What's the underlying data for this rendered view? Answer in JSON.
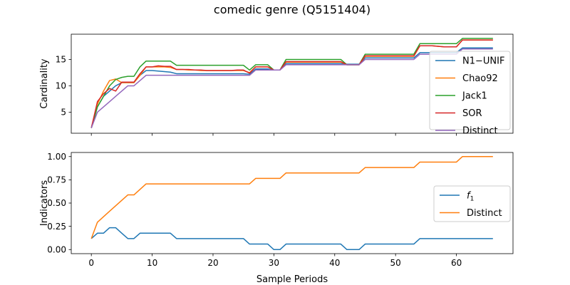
{
  "figure": {
    "title": "comedic genre (Q5151404)"
  },
  "colors": {
    "blue": "#1f77b4",
    "orange": "#ff7f0e",
    "green": "#2ca02c",
    "red": "#d62728",
    "purple": "#9467bd"
  },
  "chart_data": [
    {
      "type": "line",
      "title": "",
      "xlabel": "",
      "ylabel": "Cardinality",
      "xlim": [
        -3.3,
        69.3
      ],
      "ylim": [
        1.0,
        19.8
      ],
      "xticks": [
        0,
        10,
        20,
        30,
        40,
        50,
        60
      ],
      "yticks": [
        5,
        10,
        15
      ],
      "show_xticklabels": false,
      "grid": false,
      "legend_position": "center-right",
      "series": [
        {
          "name": "N1−UNIF",
          "color": "#1f77b4",
          "x": [
            0,
            1,
            2,
            3,
            4,
            5,
            6,
            7,
            8,
            9,
            10,
            11,
            12,
            13,
            14,
            15,
            16,
            17,
            18,
            19,
            20,
            21,
            22,
            23,
            24,
            25,
            26,
            27,
            28,
            29,
            30,
            31,
            32,
            33,
            34,
            35,
            36,
            37,
            38,
            39,
            40,
            41,
            42,
            43,
            44,
            45,
            46,
            47,
            48,
            49,
            50,
            51,
            52,
            53,
            54,
            55,
            56,
            57,
            58,
            59,
            60,
            61,
            62,
            63,
            64,
            65,
            66
          ],
          "y": [
            2.0,
            6.0,
            8.0,
            9.0,
            10.0,
            10.6,
            10.6,
            10.6,
            12.0,
            12.9,
            12.9,
            12.8,
            12.7,
            12.6,
            12.3,
            12.3,
            12.3,
            12.3,
            12.3,
            12.3,
            12.3,
            12.3,
            12.3,
            12.3,
            12.3,
            12.3,
            12.2,
            13.2,
            13.2,
            13.2,
            13.0,
            13.0,
            14.2,
            14.2,
            14.2,
            14.2,
            14.2,
            14.2,
            14.2,
            14.2,
            14.2,
            14.2,
            14.1,
            14.1,
            14.1,
            15.3,
            15.3,
            15.3,
            15.3,
            15.3,
            15.3,
            15.3,
            15.3,
            15.3,
            16.3,
            16.3,
            16.3,
            16.3,
            16.3,
            16.3,
            16.3,
            17.2,
            17.2,
            17.2,
            17.2,
            17.2,
            17.2
          ]
        },
        {
          "name": "Chao92",
          "color": "#ff7f0e",
          "x": [
            0,
            1,
            2,
            3,
            4,
            5,
            6,
            7,
            8,
            9,
            10,
            11,
            12,
            13,
            14,
            15,
            16,
            17,
            18,
            19,
            20,
            21,
            22,
            23,
            24,
            25,
            26,
            27,
            28,
            29,
            30,
            31,
            32,
            33,
            34,
            35,
            36,
            37,
            38,
            39,
            40,
            41,
            42,
            43,
            44,
            45,
            46,
            47,
            48,
            49,
            50,
            51,
            52,
            53,
            54,
            55,
            56,
            57,
            58,
            59,
            60,
            61,
            62,
            63,
            64,
            65,
            66
          ],
          "y": [
            2.0,
            6.5,
            9.0,
            11.0,
            11.3,
            10.6,
            10.6,
            10.6,
            12.0,
            13.6,
            13.6,
            13.6,
            13.6,
            13.5,
            13.1,
            13.1,
            13.0,
            13.0,
            12.9,
            12.9,
            12.9,
            12.9,
            12.9,
            12.9,
            12.9,
            12.9,
            12.5,
            13.6,
            13.6,
            13.6,
            13.0,
            13.0,
            14.5,
            14.5,
            14.5,
            14.5,
            14.5,
            14.5,
            14.5,
            14.5,
            14.5,
            14.5,
            14.0,
            14.0,
            14.0,
            15.6,
            15.6,
            15.6,
            15.6,
            15.6,
            15.6,
            15.6,
            15.6,
            15.6,
            17.6,
            17.6,
            17.6,
            17.5,
            17.4,
            17.4,
            17.4,
            18.7,
            18.7,
            18.7,
            18.7,
            18.7,
            18.7
          ]
        },
        {
          "name": "Jack1",
          "color": "#2ca02c",
          "x": [
            0,
            1,
            2,
            3,
            4,
            5,
            6,
            7,
            8,
            9,
            10,
            11,
            12,
            13,
            14,
            15,
            16,
            17,
            18,
            19,
            20,
            21,
            22,
            23,
            24,
            25,
            26,
            27,
            28,
            29,
            30,
            31,
            32,
            33,
            34,
            35,
            36,
            37,
            38,
            39,
            40,
            41,
            42,
            43,
            44,
            45,
            46,
            47,
            48,
            49,
            50,
            51,
            52,
            53,
            54,
            55,
            56,
            57,
            58,
            59,
            60,
            61,
            62,
            63,
            64,
            65,
            66
          ],
          "y": [
            2.0,
            6.0,
            8.0,
            10.0,
            11.2,
            11.6,
            11.8,
            11.8,
            13.6,
            14.7,
            14.7,
            14.7,
            14.7,
            14.7,
            13.9,
            13.9,
            13.9,
            13.9,
            13.9,
            13.9,
            13.9,
            13.9,
            13.9,
            13.9,
            13.9,
            13.9,
            13.0,
            14.0,
            14.0,
            14.0,
            13.0,
            13.0,
            15.0,
            15.0,
            15.0,
            15.0,
            15.0,
            15.0,
            15.0,
            15.0,
            15.0,
            15.0,
            14.0,
            14.0,
            14.0,
            16.0,
            16.0,
            16.0,
            16.0,
            16.0,
            16.0,
            16.0,
            16.0,
            16.0,
            18.0,
            18.0,
            18.0,
            18.0,
            18.0,
            18.0,
            18.0,
            19.0,
            19.0,
            19.0,
            19.0,
            19.0,
            19.0
          ]
        },
        {
          "name": "SOR",
          "color": "#d62728",
          "x": [
            0,
            1,
            2,
            3,
            4,
            5,
            6,
            7,
            8,
            9,
            10,
            11,
            12,
            13,
            14,
            15,
            16,
            17,
            18,
            19,
            20,
            21,
            22,
            23,
            24,
            25,
            26,
            27,
            28,
            29,
            30,
            31,
            32,
            33,
            34,
            35,
            36,
            37,
            38,
            39,
            40,
            41,
            42,
            43,
            44,
            45,
            46,
            47,
            48,
            49,
            50,
            51,
            52,
            53,
            54,
            55,
            56,
            57,
            58,
            59,
            60,
            61,
            62,
            63,
            64,
            65,
            66
          ],
          "y": [
            2.0,
            7.0,
            8.5,
            9.5,
            9.0,
            10.7,
            10.7,
            10.7,
            12.3,
            13.6,
            13.6,
            13.8,
            13.7,
            13.7,
            13.1,
            13.1,
            13.1,
            13.0,
            13.0,
            12.9,
            12.9,
            12.9,
            12.9,
            12.9,
            13.0,
            13.0,
            12.4,
            13.6,
            13.6,
            13.6,
            13.0,
            13.0,
            14.6,
            14.6,
            14.6,
            14.6,
            14.6,
            14.6,
            14.6,
            14.6,
            14.6,
            14.6,
            14.0,
            14.0,
            14.0,
            15.7,
            15.7,
            15.7,
            15.7,
            15.7,
            15.7,
            15.7,
            15.7,
            15.7,
            17.6,
            17.6,
            17.6,
            17.5,
            17.4,
            17.4,
            17.4,
            18.7,
            18.7,
            18.7,
            18.7,
            18.7,
            18.7
          ]
        },
        {
          "name": "Distinct",
          "color": "#9467bd",
          "x": [
            0,
            1,
            2,
            3,
            4,
            5,
            6,
            7,
            8,
            9,
            10,
            11,
            12,
            13,
            14,
            15,
            16,
            17,
            18,
            19,
            20,
            21,
            22,
            23,
            24,
            25,
            26,
            27,
            28,
            29,
            30,
            31,
            32,
            33,
            34,
            35,
            36,
            37,
            38,
            39,
            40,
            41,
            42,
            43,
            44,
            45,
            46,
            47,
            48,
            49,
            50,
            51,
            52,
            53,
            54,
            55,
            56,
            57,
            58,
            59,
            60,
            61,
            62,
            63,
            64,
            65,
            66
          ],
          "y": [
            2,
            5,
            6,
            7,
            8,
            9,
            10,
            10,
            11,
            12,
            12,
            12,
            12,
            12,
            12,
            12,
            12,
            12,
            12,
            12,
            12,
            12,
            12,
            12,
            12,
            12,
            12,
            13,
            13,
            13,
            13,
            13,
            14,
            14,
            14,
            14,
            14,
            14,
            14,
            14,
            14,
            14,
            14,
            14,
            14,
            15,
            15,
            15,
            15,
            15,
            15,
            15,
            15,
            15,
            16,
            16,
            16,
            16,
            16,
            16,
            16,
            17,
            17,
            17,
            17,
            17,
            17
          ]
        }
      ]
    },
    {
      "type": "line",
      "title": "",
      "xlabel": "Sample Periods",
      "ylabel": "Indicators",
      "xlim": [
        -3.3,
        69.3
      ],
      "ylim": [
        -0.044,
        1.044
      ],
      "xticks": [
        0,
        10,
        20,
        30,
        40,
        50,
        60
      ],
      "yticks": [
        0.0,
        0.25,
        0.5,
        0.75,
        1.0
      ],
      "ytick_labels": [
        "0.00",
        "0.25",
        "0.50",
        "0.75",
        "1.00"
      ],
      "grid": false,
      "legend_position": "center-right",
      "series": [
        {
          "name": "f1",
          "color": "#1f77b4",
          "x": [
            0,
            1,
            2,
            3,
            4,
            5,
            6,
            7,
            8,
            9,
            10,
            11,
            12,
            13,
            14,
            15,
            16,
            17,
            18,
            19,
            20,
            21,
            22,
            23,
            24,
            25,
            26,
            27,
            28,
            29,
            30,
            31,
            32,
            33,
            34,
            35,
            36,
            37,
            38,
            39,
            40,
            41,
            42,
            43,
            44,
            45,
            46,
            47,
            48,
            49,
            50,
            51,
            52,
            53,
            54,
            55,
            56,
            57,
            58,
            59,
            60,
            61,
            62,
            63,
            64,
            65,
            66
          ],
          "y": [
            0.118,
            0.176,
            0.176,
            0.235,
            0.235,
            0.176,
            0.118,
            0.118,
            0.176,
            0.176,
            0.176,
            0.176,
            0.176,
            0.176,
            0.118,
            0.118,
            0.118,
            0.118,
            0.118,
            0.118,
            0.118,
            0.118,
            0.118,
            0.118,
            0.118,
            0.118,
            0.059,
            0.059,
            0.059,
            0.059,
            0.0,
            0.0,
            0.059,
            0.059,
            0.059,
            0.059,
            0.059,
            0.059,
            0.059,
            0.059,
            0.059,
            0.059,
            0.0,
            0.0,
            0.0,
            0.059,
            0.059,
            0.059,
            0.059,
            0.059,
            0.059,
            0.059,
            0.059,
            0.059,
            0.118,
            0.118,
            0.118,
            0.118,
            0.118,
            0.118,
            0.118,
            0.118,
            0.118,
            0.118,
            0.118,
            0.118,
            0.118
          ]
        },
        {
          "name": "Distinct",
          "color": "#ff7f0e",
          "x": [
            0,
            1,
            2,
            3,
            4,
            5,
            6,
            7,
            8,
            9,
            10,
            11,
            12,
            13,
            14,
            15,
            16,
            17,
            18,
            19,
            20,
            21,
            22,
            23,
            24,
            25,
            26,
            27,
            28,
            29,
            30,
            31,
            32,
            33,
            34,
            35,
            36,
            37,
            38,
            39,
            40,
            41,
            42,
            43,
            44,
            45,
            46,
            47,
            48,
            49,
            50,
            51,
            52,
            53,
            54,
            55,
            56,
            57,
            58,
            59,
            60,
            61,
            62,
            63,
            64,
            65,
            66
          ],
          "y": [
            0.118,
            0.294,
            0.353,
            0.412,
            0.471,
            0.529,
            0.588,
            0.588,
            0.647,
            0.706,
            0.706,
            0.706,
            0.706,
            0.706,
            0.706,
            0.706,
            0.706,
            0.706,
            0.706,
            0.706,
            0.706,
            0.706,
            0.706,
            0.706,
            0.706,
            0.706,
            0.706,
            0.765,
            0.765,
            0.765,
            0.765,
            0.765,
            0.824,
            0.824,
            0.824,
            0.824,
            0.824,
            0.824,
            0.824,
            0.824,
            0.824,
            0.824,
            0.824,
            0.824,
            0.824,
            0.882,
            0.882,
            0.882,
            0.882,
            0.882,
            0.882,
            0.882,
            0.882,
            0.882,
            0.941,
            0.941,
            0.941,
            0.941,
            0.941,
            0.941,
            0.941,
            1.0,
            1.0,
            1.0,
            1.0,
            1.0,
            1.0
          ]
        }
      ]
    }
  ]
}
